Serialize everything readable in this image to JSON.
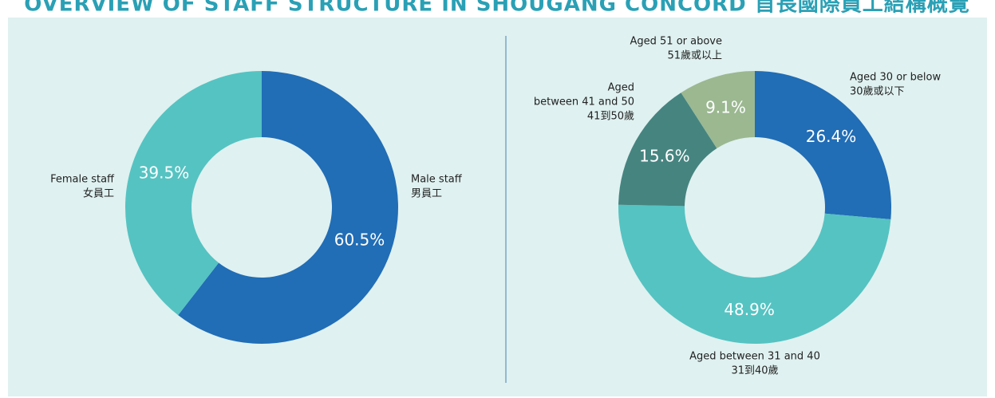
{
  "title": "OVERVIEW OF STAFF STRUCTURE IN SHOUGANG CONCORD 首長國際員工結構概覽",
  "chart_data": [
    {
      "type": "pie",
      "categories": [
        [
          "Male staff",
          "男員工"
        ],
        [
          "Female staff",
          "女員工"
        ]
      ],
      "values": [
        60.5,
        39.5
      ],
      "value_labels": [
        "60.5%",
        "39.5%"
      ],
      "colors": [
        "#216db6",
        "#55c3c2"
      ]
    },
    {
      "type": "pie",
      "categories": [
        [
          "Aged 30 or below",
          "30歲或以下"
        ],
        [
          "Aged between 31 and 40",
          "31到40歲"
        ],
        [
          "Aged",
          "between 41 and 50",
          "41到50歲"
        ],
        [
          "Aged 51 or above",
          "51歲或以上"
        ]
      ],
      "values": [
        26.4,
        48.9,
        15.6,
        9.1
      ],
      "value_labels": [
        "26.4%",
        "48.9%",
        "15.6%",
        "9.1%"
      ],
      "colors": [
        "#216db6",
        "#55c3c2",
        "#468480",
        "#9bb891"
      ]
    }
  ]
}
